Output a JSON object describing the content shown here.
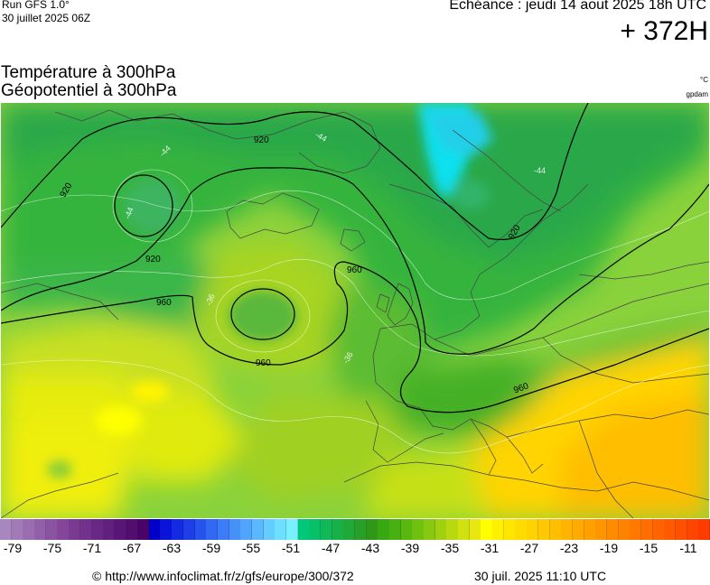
{
  "header": {
    "run_name": "Run GFS 1.0°",
    "run_date": "30 juillet 2025 06Z",
    "echeance": "Echéance : jeudi 14 aout 2025 18h UTC",
    "hour": "+ 372H"
  },
  "parameters": {
    "line1": "Température à 300hPa",
    "line2": "Géopotentiel à 300hPa",
    "unit1": "°C",
    "unit2": "gpdam"
  },
  "contour_labels": [
    "920",
    "920",
    "920",
    "920",
    "960",
    "960",
    "960",
    "960"
  ],
  "isotherm_labels": [
    "-44",
    "-44",
    "-44",
    "-44",
    "-36",
    "-36"
  ],
  "colorbar": {
    "colors": [
      "#a887be",
      "#a17ab7",
      "#9a6db0",
      "#9260a8",
      "#8a53a1",
      "#834699",
      "#7a3a92",
      "#72318c",
      "#6a2885",
      "#621f7e",
      "#5a1676",
      "#520d6f",
      "#4a0468",
      "#0000c8",
      "#0a14d8",
      "#142ae0",
      "#1e3ee8",
      "#2854ee",
      "#3268f2",
      "#3c7cf6",
      "#4690fa",
      "#50a4fc",
      "#5ab8fe",
      "#64ccff",
      "#6ee0ff",
      "#78f0ff",
      "#00c878",
      "#08c068",
      "#10b858",
      "#18b048",
      "#20a838",
      "#28a028",
      "#309818",
      "#38a810",
      "#48b010",
      "#58b810",
      "#70c010",
      "#88c810",
      "#a0d010",
      "#b8d810",
      "#d0e010",
      "#e8e810",
      "#ffff00",
      "#fff000",
      "#ffe600",
      "#ffdc00",
      "#ffd200",
      "#ffc800",
      "#ffbe00",
      "#ffb400",
      "#ffaa00",
      "#ffa000",
      "#ff9600",
      "#ff8c00",
      "#ff8200",
      "#ff7800",
      "#ff6e00",
      "#ff6400",
      "#ff5a00",
      "#ff5000",
      "#ff4600",
      "#ff3c00"
    ],
    "ticks": [
      "-79",
      "-75",
      "-71",
      "-67",
      "-63",
      "-59",
      "-55",
      "-51",
      "-47",
      "-43",
      "-39",
      "-35",
      "-31",
      "-27",
      "-23",
      "-19",
      "-15",
      "-11"
    ]
  },
  "footer": {
    "url": "© http://www.infoclimat.fr/z/gfs/europe/300/372",
    "date": "30 juil. 2025 11:10 UTC"
  }
}
